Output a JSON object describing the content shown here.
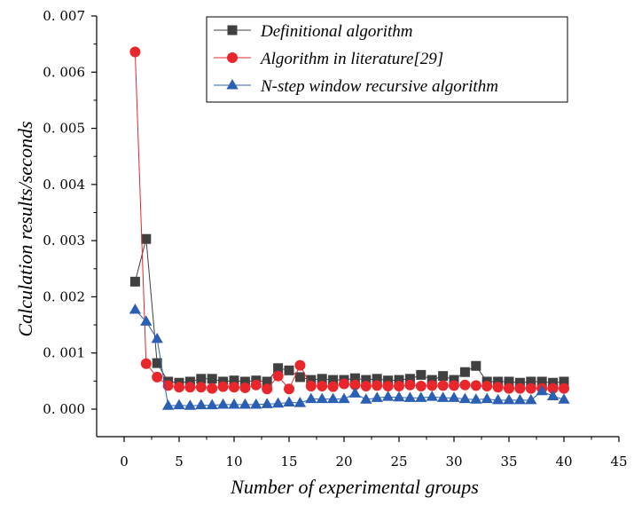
{
  "chart_data": {
    "type": "line",
    "title": "",
    "xlabel": "Number of experimental groups",
    "ylabel": "Calculation results/seconds",
    "xlim": [
      -2.5,
      45
    ],
    "ylim": [
      -0.00049,
      0.007
    ],
    "x_ticks": [
      0,
      5,
      10,
      15,
      20,
      25,
      30,
      35,
      40,
      45
    ],
    "y_ticks": [
      0.0,
      0.001,
      0.002,
      0.003,
      0.004,
      0.005,
      0.006,
      0.007
    ],
    "x_tick_labels": [
      "0",
      "5",
      "10",
      "15",
      "20",
      "25",
      "30",
      "35",
      "40",
      "45"
    ],
    "y_tick_labels": [
      "0. 000",
      "0. 001",
      "0. 002",
      "0. 003",
      "0. 004",
      "0. 005",
      "0. 006",
      "0. 007"
    ],
    "grid": false,
    "legend_position": "top-right",
    "x": [
      1,
      2,
      3,
      4,
      5,
      6,
      7,
      8,
      9,
      10,
      11,
      12,
      13,
      14,
      15,
      16,
      17,
      18,
      19,
      20,
      21,
      22,
      23,
      24,
      25,
      26,
      27,
      28,
      29,
      30,
      31,
      32,
      33,
      34,
      35,
      36,
      37,
      38,
      39,
      40
    ],
    "series": [
      {
        "name": "Definitional algorithm",
        "color": "#404040",
        "marker": "square",
        "values": [
          0.00227,
          0.00303,
          0.00082,
          0.00049,
          0.00047,
          0.00049,
          0.00054,
          0.00054,
          0.00049,
          0.00051,
          0.00049,
          0.00051,
          0.00049,
          0.00073,
          0.00069,
          0.00057,
          0.00052,
          0.00054,
          0.00052,
          0.00052,
          0.00055,
          0.00052,
          0.00054,
          0.00051,
          0.00052,
          0.00054,
          0.00061,
          0.00052,
          0.00059,
          0.00052,
          0.00066,
          0.00077,
          0.00049,
          0.00049,
          0.00049,
          0.00047,
          0.00049,
          0.00049,
          0.00047,
          0.00049
        ]
      },
      {
        "name": "Algorithm in literature[29]",
        "color": "#e8262b",
        "marker": "circle",
        "values": [
          0.00636,
          0.00081,
          0.00057,
          0.00042,
          0.00039,
          0.00039,
          0.00039,
          0.00037,
          0.0004,
          0.00039,
          0.00038,
          0.00043,
          0.00036,
          0.00059,
          0.00036,
          0.00078,
          0.00041,
          0.00041,
          0.0004,
          0.00045,
          0.00043,
          0.00041,
          0.00042,
          0.00041,
          0.00041,
          0.00043,
          0.00041,
          0.00042,
          0.00042,
          0.00042,
          0.00043,
          0.00042,
          0.00041,
          0.00039,
          0.00037,
          0.00037,
          0.00037,
          0.00037,
          0.00037,
          0.00037
        ]
      },
      {
        "name": "N-step window recursive algorithm",
        "color": "#2b5fb4",
        "marker": "triangle",
        "values": [
          0.00177,
          0.00156,
          0.00125,
          6e-05,
          7e-05,
          6e-05,
          7e-05,
          7e-05,
          8e-05,
          8e-05,
          8e-05,
          8e-05,
          9e-05,
          0.0001,
          0.00012,
          0.00011,
          0.00018,
          0.00018,
          0.00018,
          0.00018,
          0.00028,
          0.00017,
          0.0002,
          0.00022,
          0.00021,
          0.0002,
          0.0002,
          0.00022,
          0.0002,
          0.0002,
          0.00018,
          0.00017,
          0.00018,
          0.00016,
          0.00016,
          0.00016,
          0.00016,
          0.00032,
          0.00023,
          0.00017
        ]
      }
    ]
  }
}
